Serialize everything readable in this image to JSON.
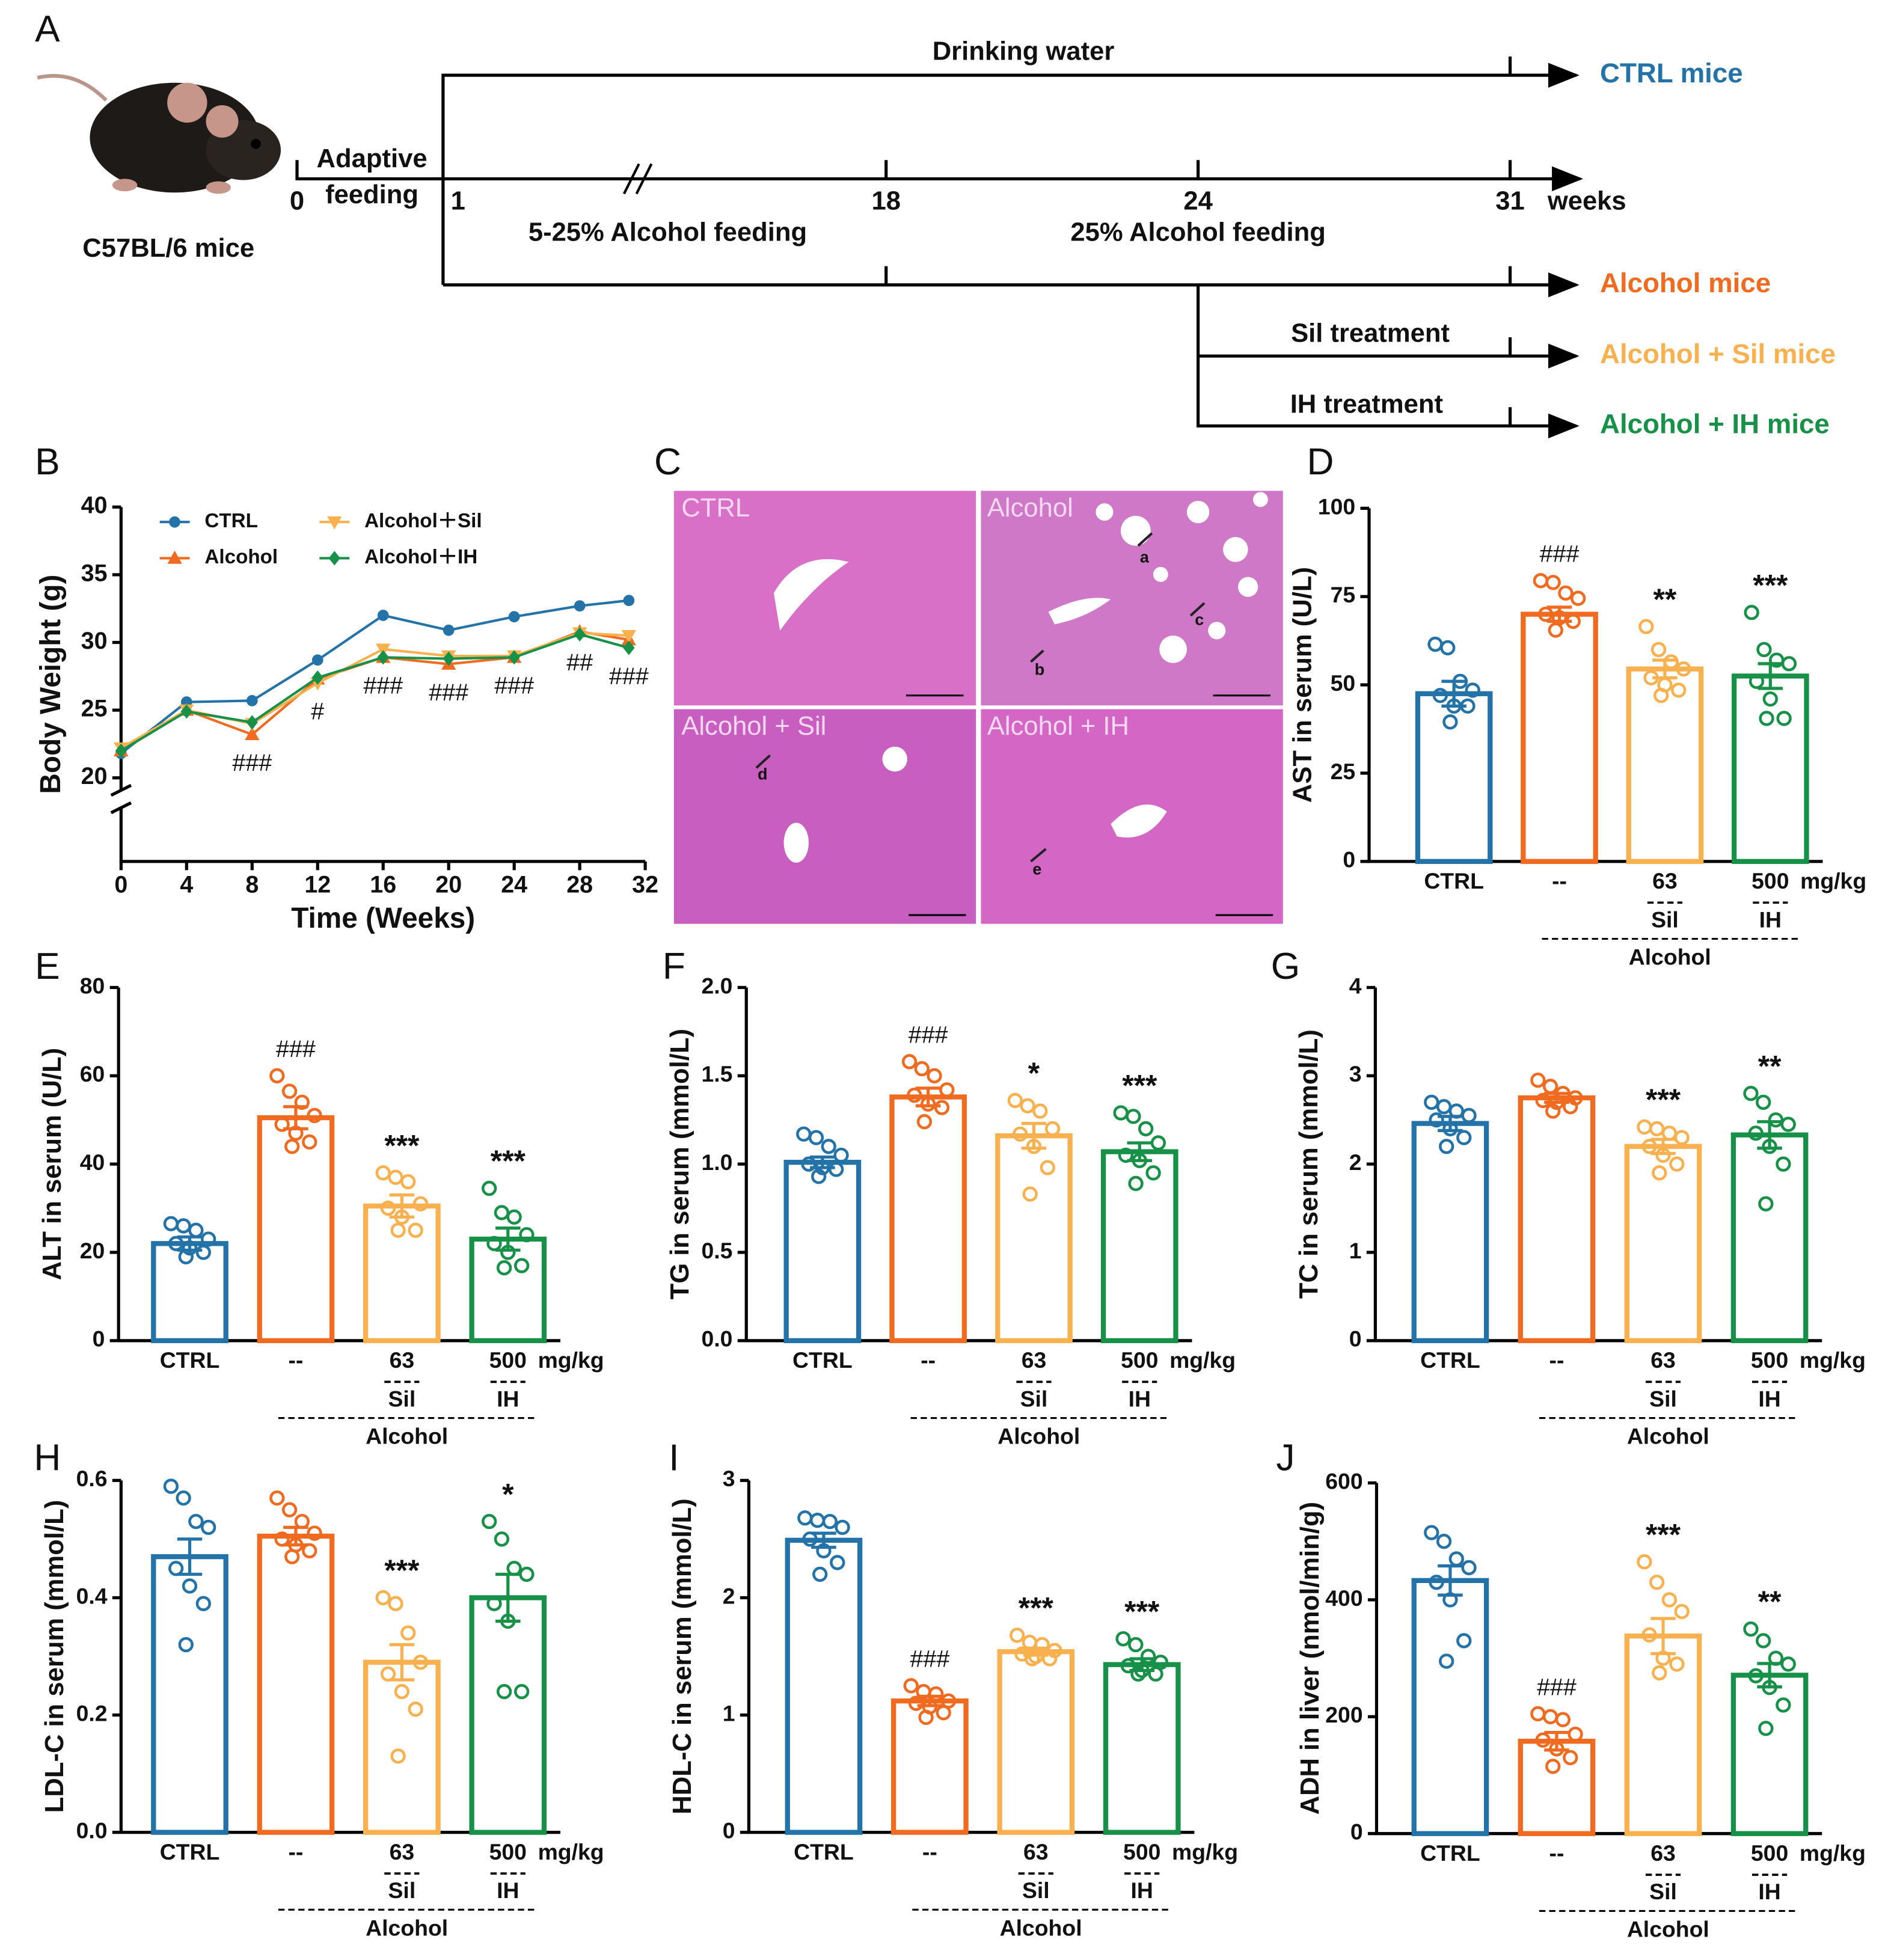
{
  "diagram": {
    "panel": "A",
    "strain": "C57BL/6 mice",
    "adaptive": [
      "Adaptive",
      "feeding"
    ],
    "timeline": [
      "0",
      "1",
      "18",
      "24",
      "31"
    ],
    "unit": "weeks",
    "phases": [
      "Drinking water",
      "5-25% Alcohol feeding",
      "25% Alcohol feeding"
    ],
    "treatments": [
      "Sil treatment",
      "IH treatment"
    ],
    "groups": [
      "CTRL mice",
      "Alcohol mice",
      "Alcohol + Sil mice",
      "Alcohol + IH mice"
    ]
  },
  "histology": {
    "panel": "C",
    "quadrants": [
      "CTRL",
      "Alcohol",
      "Alcohol + Sil",
      "Alcohol + IH"
    ],
    "markers": [
      "a",
      "b",
      "c",
      "d",
      "e"
    ]
  },
  "chart_data": [
    {
      "panel": "B",
      "type": "line",
      "xlabel": "Time (Weeks)",
      "ylabel": "Body Weight (g)",
      "x": [
        0,
        4,
        8,
        12,
        16,
        20,
        24,
        28,
        31
      ],
      "xlim": [
        0,
        32
      ],
      "xticks": [
        0,
        4,
        8,
        12,
        16,
        20,
        24,
        28,
        32
      ],
      "ylim": [
        20,
        40
      ],
      "yticks": [
        20,
        25,
        30,
        35,
        40
      ],
      "series": [
        {
          "name": "CTRL",
          "color": "#2372a8",
          "marker": "circle",
          "values": [
            21.8,
            25.6,
            25.7,
            28.7,
            32.0,
            30.9,
            31.9,
            32.7,
            33.1
          ]
        },
        {
          "name": "Alcohol",
          "color": "#f06a1f",
          "marker": "triangle-up",
          "values": [
            22.0,
            25.0,
            23.2,
            27.3,
            28.9,
            28.4,
            28.9,
            30.8,
            30.2
          ]
        },
        {
          "name": "Alcohol＋Sil",
          "color": "#f9b150",
          "marker": "triangle-down",
          "values": [
            22.2,
            25.0,
            24.0,
            27.0,
            29.5,
            29.0,
            29.0,
            30.7,
            30.5
          ]
        },
        {
          "name": "Alcohol＋IH",
          "color": "#179148",
          "marker": "diamond",
          "values": [
            22.0,
            24.9,
            24.1,
            27.4,
            28.9,
            28.8,
            28.9,
            30.6,
            29.6
          ]
        }
      ],
      "annotations": [
        {
          "x": 8,
          "text": "###"
        },
        {
          "x": 12,
          "text": "#"
        },
        {
          "x": 16,
          "text": "###"
        },
        {
          "x": 20,
          "text": "###"
        },
        {
          "x": 24,
          "text": "###"
        },
        {
          "x": 28,
          "text": "##"
        },
        {
          "x": 31,
          "text": "###"
        }
      ]
    },
    {
      "panel": "D",
      "type": "bar",
      "ylabel": "AST in serum (U/L)",
      "categories": [
        "CTRL",
        "--",
        "63",
        "500"
      ],
      "unit": "mg/kg",
      "groups": [
        "Sil",
        "IH"
      ],
      "treatment": "Alcohol",
      "colors": [
        "#2372a8",
        "#f06a1f",
        "#f9b150",
        "#179148"
      ],
      "ylim": [
        0,
        100
      ],
      "yticks": [
        0,
        25,
        50,
        75,
        100
      ],
      "values": [
        47.5,
        70,
        54.5,
        52.5
      ],
      "errors": [
        3.5,
        2,
        2.5,
        3.5
      ],
      "significance": [
        null,
        "###",
        "**",
        "***"
      ],
      "points": [
        [
          61.5,
          60.5,
          51,
          48.5,
          47,
          44,
          44,
          39.5
        ],
        [
          79.5,
          79,
          76,
          74.5,
          70,
          69,
          68,
          65.5
        ],
        [
          66.5,
          60,
          56.5,
          54.5,
          52,
          50,
          48.5,
          47
        ],
        [
          70.5,
          60,
          57,
          56,
          51,
          46,
          40.5,
          40.5
        ]
      ]
    },
    {
      "panel": "E",
      "type": "bar",
      "ylabel": "ALT in serum (U/L)",
      "categories": [
        "CTRL",
        "--",
        "63",
        "500"
      ],
      "unit": "mg/kg",
      "groups": [
        "Sil",
        "IH"
      ],
      "treatment": "Alcohol",
      "colors": [
        "#2372a8",
        "#f06a1f",
        "#f9b150",
        "#179148"
      ],
      "ylim": [
        0,
        80
      ],
      "yticks": [
        0,
        20,
        40,
        60,
        80
      ],
      "values": [
        22,
        50.5,
        30.5,
        23
      ],
      "errors": [
        1.5,
        2.5,
        2.5,
        2.5
      ],
      "significance": [
        null,
        "###",
        "***",
        "***"
      ],
      "points": [
        [
          26.5,
          26,
          25,
          23,
          22,
          21,
          20,
          19
        ],
        [
          60,
          56.5,
          54,
          51,
          49,
          47,
          45,
          44
        ],
        [
          38,
          37,
          36,
          31,
          30,
          28,
          25,
          25
        ],
        [
          34.5,
          29,
          28,
          24,
          22,
          20,
          17,
          16.5
        ]
      ]
    },
    {
      "panel": "F",
      "type": "bar",
      "ylabel": "TG in serum (mmol/L)",
      "categories": [
        "CTRL",
        "--",
        "63",
        "500"
      ],
      "unit": "mg/kg",
      "groups": [
        "Sil",
        "IH"
      ],
      "treatment": "Alcohol",
      "colors": [
        "#2372a8",
        "#f06a1f",
        "#f9b150",
        "#179148"
      ],
      "ylim": [
        0,
        2
      ],
      "yticks": [
        {
          "value": 0,
          "label": "0.0"
        },
        0.5,
        {
          "value": 1,
          "label": "1.0"
        },
        1.5,
        {
          "value": 2,
          "label": "2.0"
        }
      ],
      "values": [
        1.01,
        1.38,
        1.16,
        1.07
      ],
      "errors": [
        0.03,
        0.05,
        0.07,
        0.05
      ],
      "significance": [
        null,
        "###",
        "*",
        "***"
      ],
      "points": [
        [
          1.17,
          1.15,
          1.1,
          1.05,
          1.0,
          0.98,
          0.97,
          0.93
        ],
        [
          1.58,
          1.54,
          1.5,
          1.42,
          1.39,
          1.34,
          1.32,
          1.24
        ],
        [
          1.36,
          1.33,
          1.3,
          1.2,
          1.17,
          1.1,
          0.98,
          0.83
        ],
        [
          1.29,
          1.27,
          1.2,
          1.12,
          1.05,
          1.02,
          0.95,
          0.89
        ]
      ]
    },
    {
      "panel": "G",
      "type": "bar",
      "ylabel": "TC in serum (mmol/L)",
      "categories": [
        "CTRL",
        "--",
        "63",
        "500"
      ],
      "unit": "mg/kg",
      "groups": [
        "Sil",
        "IH"
      ],
      "treatment": "Alcohol",
      "colors": [
        "#2372a8",
        "#f06a1f",
        "#f9b150",
        "#179148"
      ],
      "ylim": [
        0,
        4
      ],
      "yticks": [
        0,
        1,
        2,
        3,
        4
      ],
      "values": [
        2.46,
        2.75,
        2.2,
        2.33
      ],
      "errors": [
        0.08,
        0.05,
        0.08,
        0.15
      ],
      "significance": [
        null,
        null,
        "***",
        "**"
      ],
      "points": [
        [
          2.7,
          2.65,
          2.6,
          2.55,
          2.5,
          2.4,
          2.3,
          2.2
        ],
        [
          2.95,
          2.88,
          2.8,
          2.75,
          2.72,
          2.7,
          2.65,
          2.6
        ],
        [
          2.42,
          2.4,
          2.35,
          2.3,
          2.2,
          2.1,
          2.0,
          1.9
        ],
        [
          2.8,
          2.7,
          2.5,
          2.45,
          2.35,
          2.2,
          2.0,
          1.55
        ]
      ]
    },
    {
      "panel": "H",
      "type": "bar",
      "ylabel": "LDL-C in serum (mmol/L)",
      "categories": [
        "CTRL",
        "--",
        "63",
        "500"
      ],
      "unit": "mg/kg",
      "groups": [
        "Sil",
        "IH"
      ],
      "treatment": "Alcohol",
      "colors": [
        "#2372a8",
        "#f06a1f",
        "#f9b150",
        "#179148"
      ],
      "ylim": [
        0,
        0.6
      ],
      "yticks": [
        {
          "value": 0,
          "label": "0.0"
        },
        0.2,
        0.4,
        0.6
      ],
      "values": [
        0.47,
        0.505,
        0.29,
        0.4
      ],
      "errors": [
        0.03,
        0.015,
        0.03,
        0.04
      ],
      "significance": [
        null,
        null,
        "***",
        "*"
      ],
      "points": [
        [
          0.59,
          0.57,
          0.53,
          0.52,
          0.45,
          0.42,
          0.39,
          0.32
        ],
        [
          0.57,
          0.55,
          0.53,
          0.51,
          0.5,
          0.49,
          0.48,
          0.47
        ],
        [
          0.4,
          0.39,
          0.34,
          0.29,
          0.27,
          0.24,
          0.21,
          0.13
        ],
        [
          0.53,
          0.5,
          0.45,
          0.44,
          0.39,
          0.36,
          0.24,
          0.24
        ]
      ]
    },
    {
      "panel": "I",
      "type": "bar",
      "ylabel": "HDL-C in serum (mmol/L)",
      "categories": [
        "CTRL",
        "--",
        "63",
        "500"
      ],
      "unit": "mg/kg",
      "groups": [
        "Sil",
        "IH"
      ],
      "treatment": "Alcohol",
      "colors": [
        "#2372a8",
        "#f06a1f",
        "#f9b150",
        "#179148"
      ],
      "ylim": [
        0,
        3
      ],
      "yticks": [
        0,
        1,
        2,
        3
      ],
      "values": [
        2.49,
        1.12,
        1.54,
        1.43
      ],
      "errors": [
        0.06,
        0.04,
        0.03,
        0.05
      ],
      "significance": [
        null,
        "###",
        "***",
        "***"
      ],
      "points": [
        [
          2.68,
          2.66,
          2.65,
          2.6,
          2.5,
          2.4,
          2.3,
          2.2
        ],
        [
          1.25,
          1.2,
          1.18,
          1.12,
          1.1,
          1.07,
          1.02,
          0.98
        ],
        [
          1.68,
          1.62,
          1.6,
          1.55,
          1.52,
          1.5,
          1.48,
          1.48
        ],
        [
          1.65,
          1.6,
          1.5,
          1.45,
          1.42,
          1.38,
          1.35,
          1.35
        ]
      ]
    },
    {
      "panel": "J",
      "type": "bar",
      "ylabel": "ADH in liver (nmol/min/g)",
      "categories": [
        "CTRL",
        "--",
        "63",
        "500"
      ],
      "unit": "mg/kg",
      "groups": [
        "Sil",
        "IH"
      ],
      "treatment": "Alcohol",
      "colors": [
        "#2372a8",
        "#f06a1f",
        "#f9b150",
        "#179148"
      ],
      "ylim": [
        0,
        600
      ],
      "yticks": [
        0,
        200,
        400,
        600
      ],
      "values": [
        433,
        158,
        338,
        271
      ],
      "errors": [
        25,
        15,
        30,
        20
      ],
      "significance": [
        null,
        "###",
        "***",
        "**"
      ],
      "points": [
        [
          515,
          500,
          470,
          455,
          430,
          400,
          330,
          295
        ],
        [
          205,
          200,
          195,
          170,
          160,
          145,
          130,
          115
        ],
        [
          465,
          430,
          400,
          380,
          340,
          300,
          290,
          275
        ],
        [
          350,
          330,
          300,
          290,
          270,
          250,
          220,
          180
        ]
      ]
    }
  ]
}
